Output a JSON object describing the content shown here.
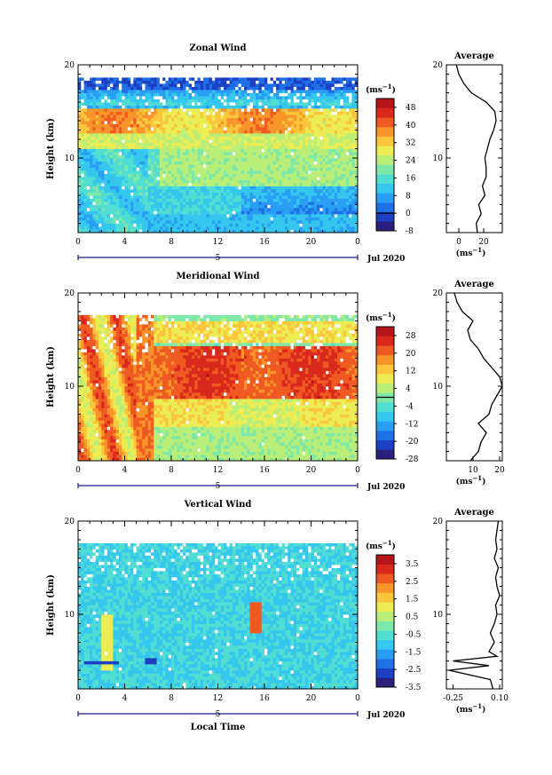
{
  "figure": {
    "x_label": "Local Time",
    "y_label": "Height (km)",
    "date_label": "Jul 2020",
    "day_label": "5",
    "unit_label": "(ms",
    "unit_exp": "−1",
    "avg_title": "Average"
  },
  "colors": {
    "scale": [
      "#2a1f7a",
      "#1c3fc4",
      "#1f6fe6",
      "#2a9ef5",
      "#35c7ee",
      "#52ddd3",
      "#7ee8a8",
      "#b9ee78",
      "#ecec55",
      "#fbc63c",
      "#f7952a",
      "#ee5a21",
      "#d9281c",
      "#b5151a"
    ],
    "gap": "#ffffff",
    "axis": "#000000",
    "day_bar": "#1a1a8a"
  },
  "chart_data": [
    {
      "type": "heatmap",
      "title": "Zonal Wind",
      "x_label": "Local Time",
      "y_label": "Height (km)",
      "x_ticks": [
        "0",
        "4",
        "8",
        "12",
        "16",
        "20",
        "0"
      ],
      "y_ticks": [
        "10",
        "20"
      ],
      "xlim": [
        0,
        24
      ],
      "ylim": [
        2,
        20
      ],
      "colorbar": {
        "unit": "(ms−1)",
        "ticks": [
          "48",
          "40",
          "32",
          "24",
          "16",
          "8",
          "0",
          "-8"
        ],
        "range": [
          -8,
          52
        ],
        "zero_line": 0
      },
      "description_note": "",
      "profile": {
        "title": "Average",
        "x_ticks": [
          "0",
          "20"
        ],
        "xlim": [
          -10,
          35
        ],
        "y_ticks": [
          "10",
          "20"
        ],
        "height_km": [
          2,
          3,
          4,
          5,
          6,
          7,
          8,
          9,
          10,
          11,
          12,
          13,
          14,
          15,
          16,
          17,
          18,
          19,
          20
        ],
        "value_ms": [
          15,
          14,
          18,
          16,
          21,
          19,
          22,
          22,
          21,
          23,
          25,
          28,
          30,
          29,
          22,
          10,
          4,
          0,
          -2
        ]
      }
    },
    {
      "type": "heatmap",
      "title": "Meridional Wind",
      "x_label": "Local Time",
      "y_label": "Height (km)",
      "x_ticks": [
        "0",
        "4",
        "8",
        "12",
        "16",
        "20",
        "0"
      ],
      "y_ticks": [
        "10",
        "20"
      ],
      "xlim": [
        0,
        24
      ],
      "ylim": [
        2,
        20
      ],
      "colorbar": {
        "unit": "(ms−1)",
        "ticks": [
          "28",
          "20",
          "12",
          "4",
          "-4",
          "-12",
          "-20",
          "-28"
        ],
        "range": [
          -28,
          32
        ],
        "zero_line": 0
      },
      "profile": {
        "title": "Average",
        "x_ticks": [
          "10",
          "20"
        ],
        "xlim": [
          0,
          21
        ],
        "y_ticks": [
          "10",
          "20"
        ],
        "height_km": [
          2,
          3,
          4,
          5,
          6,
          7,
          8,
          9,
          10,
          11,
          12,
          13,
          14,
          15,
          16,
          17,
          18,
          19,
          20
        ],
        "value_ms": [
          9,
          12,
          13,
          15,
          12,
          16,
          17,
          19,
          21,
          20,
          17,
          14,
          12,
          9,
          8,
          10,
          6,
          4,
          3
        ]
      }
    },
    {
      "type": "heatmap",
      "title": "Vertical Wind",
      "x_label": "Local Time",
      "y_label": "Height (km)",
      "x_ticks": [
        "0",
        "4",
        "8",
        "12",
        "16",
        "20",
        "0"
      ],
      "y_ticks": [
        "10",
        "20"
      ],
      "xlim": [
        0,
        24
      ],
      "ylim": [
        2,
        20
      ],
      "colorbar": {
        "unit": "(ms−1)",
        "ticks": [
          "3.5",
          "2.5",
          "1.5",
          "0.5",
          "-0.5",
          "-1.5",
          "-2.5",
          "-3.5"
        ],
        "range": [
          -3.5,
          4
        ],
        "zero_line": null
      },
      "profile": {
        "title": "Average",
        "x_ticks": [
          "-0.25",
          "0.10"
        ],
        "xlim": [
          -0.3,
          0.12
        ],
        "y_ticks": [
          "10",
          "20"
        ],
        "height_km": [
          2,
          3,
          4,
          4.5,
          5,
          5.5,
          6,
          7,
          8,
          9,
          10,
          11,
          12,
          13,
          14,
          15,
          16,
          17,
          18,
          19,
          20
        ],
        "value_ms": [
          0.05,
          0.03,
          -0.28,
          0.02,
          -0.25,
          0.08,
          0.02,
          0.06,
          0.03,
          0.06,
          0.08,
          0.07,
          0.1,
          0.08,
          0.07,
          0.09,
          0.06,
          0.08,
          0.07,
          0.08,
          0.09
        ]
      }
    }
  ]
}
